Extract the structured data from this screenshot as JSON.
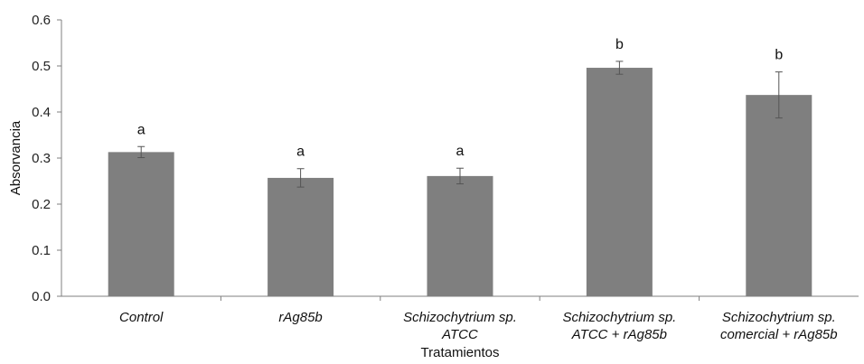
{
  "chart_data": {
    "type": "bar",
    "categories": [
      [
        "Control"
      ],
      [
        "rAg85b"
      ],
      [
        "Schizochytrium sp.",
        "ATCC"
      ],
      [
        "Schizochytrium sp.",
        "ATCC + rAg85b"
      ],
      [
        "Schizochytrium sp.",
        "comercial + rAg85b"
      ]
    ],
    "values": [
      0.313,
      0.257,
      0.261,
      0.496,
      0.437
    ],
    "errors": [
      0.012,
      0.02,
      0.017,
      0.014,
      0.05
    ],
    "significance_labels": [
      "a",
      "a",
      "a",
      "b",
      "b"
    ],
    "xlabel": "Tratamientos",
    "ylabel": "Absorvancia",
    "ylim": [
      0,
      0.6
    ],
    "yticks": [
      "0.0",
      "0.1",
      "0.2",
      "0.3",
      "0.4",
      "0.5",
      "0.6"
    ],
    "grid": false,
    "bar_color": "#7f7f7f",
    "axis_color": "#7f7f7f",
    "error_bar_color": "#555555"
  }
}
